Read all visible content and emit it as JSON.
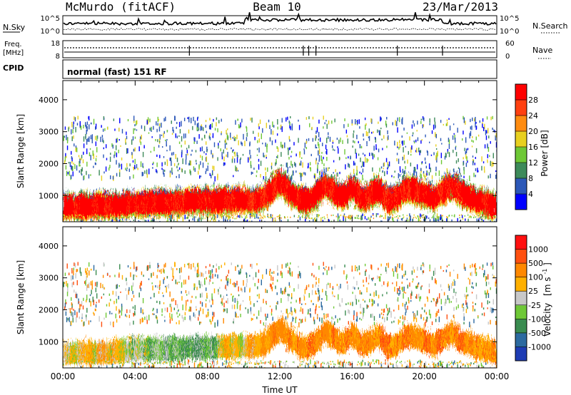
{
  "header": {
    "station": "McMurdo (fitACF)",
    "beam": "Beam 10",
    "date": "23/Mar/2013"
  },
  "noise_panel": {
    "left_label": "N.Sky",
    "left_ticks": [
      "10^5",
      "10^0"
    ],
    "right_ticks": [
      "10^5",
      "10^0"
    ],
    "right_label": "N.Search"
  },
  "freq_panel": {
    "left_label_line1": "Freq.",
    "left_label_line2": "[MHz]",
    "left_ticks": [
      "18",
      "8"
    ],
    "right_ticks": [
      "60",
      "0"
    ],
    "right_label": "Nave"
  },
  "cpid_panel": {
    "label": "CPID",
    "text": "normal (fast) 151 RF"
  },
  "chart_data": [
    {
      "type": "heatmap",
      "name": "power",
      "ylabel": "Slant Range [km]",
      "y_ticks": [
        1000,
        2000,
        3000,
        4000
      ],
      "ylim": [
        180,
        4600
      ],
      "x_ticks": [
        "00:00",
        "04:00",
        "08:00",
        "12:00",
        "16:00",
        "20:00",
        "00:00"
      ],
      "xlim_hours": [
        0,
        24
      ],
      "colorbar_label": "Power [dB]",
      "colorbar_ticks": [
        4,
        8,
        12,
        16,
        20,
        24,
        28
      ],
      "colorbar_colors": [
        "#0000ff",
        "#2c58b8",
        "#3d8a5a",
        "#6ec836",
        "#e8d020",
        "#ff8c10",
        "#ff4010",
        "#ff0000"
      ],
      "echo_band_center_km": [
        [
          0,
          620
        ],
        [
          1,
          640
        ],
        [
          2,
          660
        ],
        [
          3,
          700
        ],
        [
          4,
          740
        ],
        [
          5,
          760
        ],
        [
          6,
          780
        ],
        [
          7,
          800
        ],
        [
          8,
          820
        ],
        [
          9,
          830
        ],
        [
          10,
          860
        ],
        [
          10.5,
          820
        ],
        [
          11,
          900
        ],
        [
          11.5,
          1150
        ],
        [
          12,
          1450
        ],
        [
          12.5,
          1100
        ],
        [
          13,
          900
        ],
        [
          13.5,
          800
        ],
        [
          14,
          1000
        ],
        [
          14.5,
          1350
        ],
        [
          15,
          1100
        ],
        [
          15.5,
          950
        ],
        [
          16,
          1250
        ],
        [
          16.5,
          900
        ],
        [
          17,
          1000
        ],
        [
          17.5,
          1200
        ],
        [
          18,
          800
        ],
        [
          18.5,
          950
        ],
        [
          19,
          1200
        ],
        [
          20,
          1050
        ],
        [
          20.5,
          900
        ],
        [
          21,
          1100
        ],
        [
          21.5,
          1300
        ],
        [
          22,
          1050
        ],
        [
          23,
          800
        ],
        [
          24,
          650
        ]
      ],
      "scatter_band_km": [
        2100,
        3400
      ]
    },
    {
      "type": "heatmap",
      "name": "velocity",
      "ylabel": "Slant Range [km]",
      "y_ticks": [
        1000,
        2000,
        3000,
        4000
      ],
      "ylim": [
        180,
        4600
      ],
      "x_ticks": [
        "00:00",
        "04:00",
        "08:00",
        "12:00",
        "16:00",
        "20:00",
        "00:00"
      ],
      "xlim_hours": [
        0,
        24
      ],
      "xlabel": "Time UT",
      "colorbar_label_line1": "Velocity",
      "colorbar_label_line2": "[m s",
      "colorbar_label_sup": "-1",
      "colorbar_label_end": "]",
      "colorbar_ticks": [
        "1000",
        "500",
        "100",
        "25",
        "-25",
        "-100",
        "-500",
        "-1000"
      ],
      "colorbar_colors": [
        "#1e3cb4",
        "#2c6aa0",
        "#3a8c50",
        "#6ec836",
        "#c8c8c8",
        "#ffb000",
        "#ff8800",
        "#ff5010",
        "#ff1010"
      ]
    }
  ]
}
